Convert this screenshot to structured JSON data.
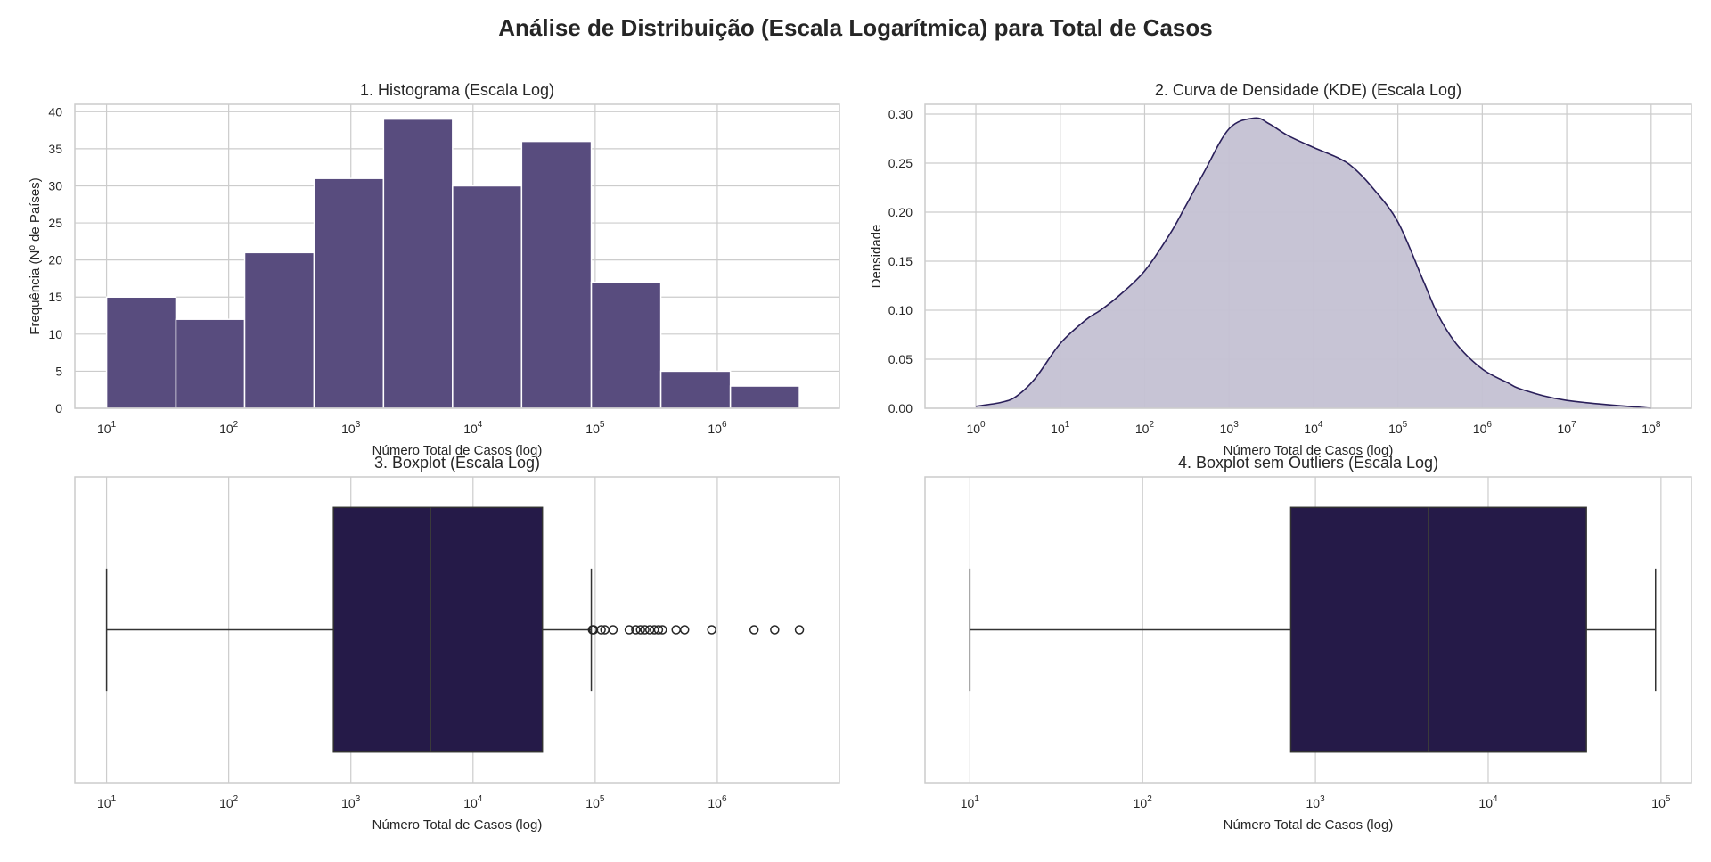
{
  "figure_title": "Análise de Distribuição (Escala Logarítmica) para Total de Casos",
  "colors": {
    "hist_bar": "#584c7e",
    "kde_line": "#2a1f5a",
    "kde_fill": "#c4c1d3",
    "box_fill": "#251a48",
    "grid": "#cccccc"
  },
  "chart_data": [
    {
      "type": "bar",
      "title": "1. Histograma (Escala Log)",
      "xlabel": "Número Total de Casos (log)",
      "ylabel": "Frequência (Nº de Países)",
      "xscale": "log",
      "xlim": [
        5.5,
        10000000
      ],
      "ylim": [
        0,
        41
      ],
      "xticks": [
        {
          "base": "10",
          "exp": "1",
          "value": 10
        },
        {
          "base": "10",
          "exp": "2",
          "value": 100
        },
        {
          "base": "10",
          "exp": "3",
          "value": 1000
        },
        {
          "base": "10",
          "exp": "4",
          "value": 10000
        },
        {
          "base": "10",
          "exp": "5",
          "value": 100000
        },
        {
          "base": "10",
          "exp": "6",
          "value": 1000000
        }
      ],
      "yticks": [
        "0",
        "5",
        "10",
        "15",
        "20",
        "25",
        "30",
        "35",
        "40"
      ],
      "bins": [
        {
          "from": 10,
          "to": 37,
          "count": 15
        },
        {
          "from": 37,
          "to": 135,
          "count": 12
        },
        {
          "from": 135,
          "to": 500,
          "count": 21
        },
        {
          "from": 500,
          "to": 1850,
          "count": 31
        },
        {
          "from": 1850,
          "to": 6800,
          "count": 39
        },
        {
          "from": 6800,
          "to": 25000,
          "count": 30
        },
        {
          "from": 25000,
          "to": 93000,
          "count": 36
        },
        {
          "from": 93000,
          "to": 345000,
          "count": 17
        },
        {
          "from": 345000,
          "to": 1280000,
          "count": 5
        },
        {
          "from": 1280000,
          "to": 4700000,
          "count": 3
        }
      ],
      "grid": true
    },
    {
      "type": "area",
      "title": "2. Curva de Densidade (KDE) (Escala Log)",
      "xlabel": "Número Total de Casos (log)",
      "ylabel": "Densidade",
      "xscale": "log",
      "xlim": [
        0.25,
        300000000
      ],
      "ylim": [
        0,
        0.31
      ],
      "xticks": [
        {
          "base": "10",
          "exp": "0",
          "value": 1
        },
        {
          "base": "10",
          "exp": "1",
          "value": 10
        },
        {
          "base": "10",
          "exp": "2",
          "value": 100
        },
        {
          "base": "10",
          "exp": "3",
          "value": 1000
        },
        {
          "base": "10",
          "exp": "4",
          "value": 10000
        },
        {
          "base": "10",
          "exp": "5",
          "value": 100000
        },
        {
          "base": "10",
          "exp": "6",
          "value": 1000000
        },
        {
          "base": "10",
          "exp": "7",
          "value": 10000000
        },
        {
          "base": "10",
          "exp": "8",
          "value": 100000000
        }
      ],
      "yticks": [
        "0.00",
        "0.05",
        "0.10",
        "0.15",
        "0.20",
        "0.25",
        "0.30"
      ],
      "x": [
        1,
        2,
        3,
        5,
        10,
        20,
        30,
        50,
        100,
        200,
        300,
        500,
        1000,
        2000,
        3000,
        5000,
        10000,
        20000,
        30000,
        50000,
        100000,
        200000,
        300000,
        500000,
        1000000,
        2000000,
        3000000,
        10000000,
        100000000
      ],
      "y": [
        0.002,
        0.006,
        0.012,
        0.03,
        0.066,
        0.09,
        0.1,
        0.115,
        0.14,
        0.178,
        0.205,
        0.24,
        0.285,
        0.296,
        0.29,
        0.278,
        0.266,
        0.255,
        0.245,
        0.225,
        0.19,
        0.13,
        0.095,
        0.065,
        0.04,
        0.026,
        0.019,
        0.008,
        0.0
      ],
      "grid": true
    },
    {
      "type": "box",
      "title": "3. Boxplot (Escala Log)",
      "xlabel": "Número Total de Casos (log)",
      "xscale": "log",
      "xlim": [
        5.5,
        10000000
      ],
      "xticks": [
        {
          "base": "10",
          "exp": "1",
          "value": 10
        },
        {
          "base": "10",
          "exp": "2",
          "value": 100
        },
        {
          "base": "10",
          "exp": "3",
          "value": 1000
        },
        {
          "base": "10",
          "exp": "4",
          "value": 10000
        },
        {
          "base": "10",
          "exp": "5",
          "value": 100000
        },
        {
          "base": "10",
          "exp": "6",
          "value": 1000000
        }
      ],
      "whisker_low": 10,
      "q1": 720,
      "median": 4500,
      "q3": 37000,
      "whisker_high": 93000,
      "outliers": [
        95000,
        97000,
        112000,
        120000,
        140000,
        190000,
        215000,
        235000,
        255000,
        280000,
        305000,
        330000,
        355000,
        460000,
        540000,
        900000,
        2000000,
        2950000,
        4700000
      ],
      "grid": true
    },
    {
      "type": "box",
      "title": "4. Boxplot sem Outliers (Escala Log)",
      "xlabel": "Número Total de Casos (log)",
      "xscale": "log",
      "xlim": [
        5.5,
        150000
      ],
      "xticks": [
        {
          "base": "10",
          "exp": "1",
          "value": 10
        },
        {
          "base": "10",
          "exp": "2",
          "value": 100
        },
        {
          "base": "10",
          "exp": "3",
          "value": 1000
        },
        {
          "base": "10",
          "exp": "4",
          "value": 10000
        },
        {
          "base": "10",
          "exp": "5",
          "value": 100000
        }
      ],
      "whisker_low": 10,
      "q1": 720,
      "median": 4500,
      "q3": 37000,
      "whisker_high": 93000,
      "outliers": [],
      "grid": true
    }
  ]
}
